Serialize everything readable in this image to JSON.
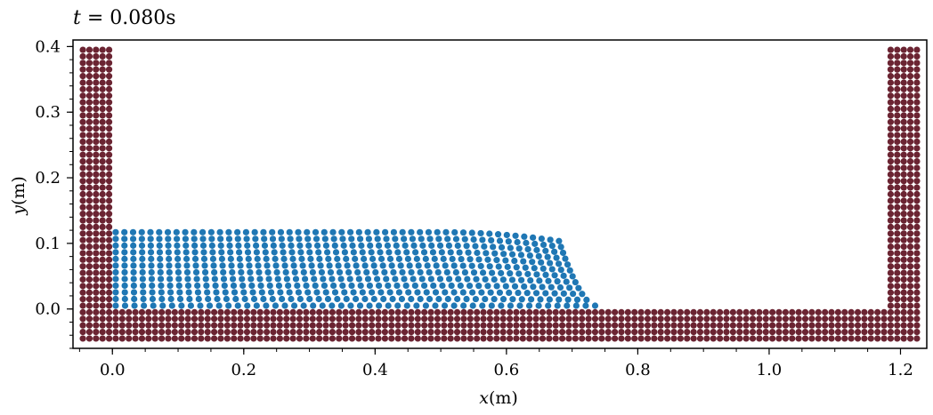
{
  "chart_data": {
    "type": "scatter",
    "title": "t = 0.080s",
    "title_var": "t",
    "title_value": "0.080s",
    "xlabel": "x(m)",
    "xlabel_var": "x",
    "xlabel_unit": "(m)",
    "ylabel": "y(m)",
    "ylabel_var": "y",
    "ylabel_unit": "(m)",
    "xlim": [
      -0.06,
      1.24
    ],
    "ylim": [
      -0.06,
      0.41
    ],
    "xticks": [
      0.0,
      0.2,
      0.4,
      0.6,
      0.8,
      1.0,
      1.2
    ],
    "xtick_labels": [
      "0.0",
      "0.2",
      "0.4",
      "0.6",
      "0.8",
      "1.0",
      "1.2"
    ],
    "yticks": [
      0.0,
      0.1,
      0.2,
      0.3,
      0.4
    ],
    "ytick_labels": [
      "0.0",
      "0.1",
      "0.2",
      "0.3",
      "0.4"
    ],
    "minor_tick_step": {
      "x": 0.05,
      "y": 0.02
    },
    "grid": false,
    "particle_spacing": 0.01,
    "series": [
      {
        "kind": "boundary",
        "color": "#6b2432",
        "regions": [
          {
            "x_range": [
              -0.045,
              -0.005
            ],
            "y_range": [
              -0.045,
              0.395
            ]
          },
          {
            "x_range": [
              1.185,
              1.225
            ],
            "y_range": [
              -0.045,
              0.395
            ]
          },
          {
            "x_range": [
              0.005,
              1.175
            ],
            "y_range": [
              -0.045,
              -0.005
            ]
          }
        ]
      },
      {
        "kind": "fluid",
        "color": "#1f77b4",
        "columns": 52,
        "rows": 12,
        "x_start": 0.005,
        "y_start": 0.005,
        "surface_height": 0.117,
        "front_x_bottom": 0.735,
        "front_x_top": 0.68,
        "front_start_x": 0.5
      }
    ]
  }
}
